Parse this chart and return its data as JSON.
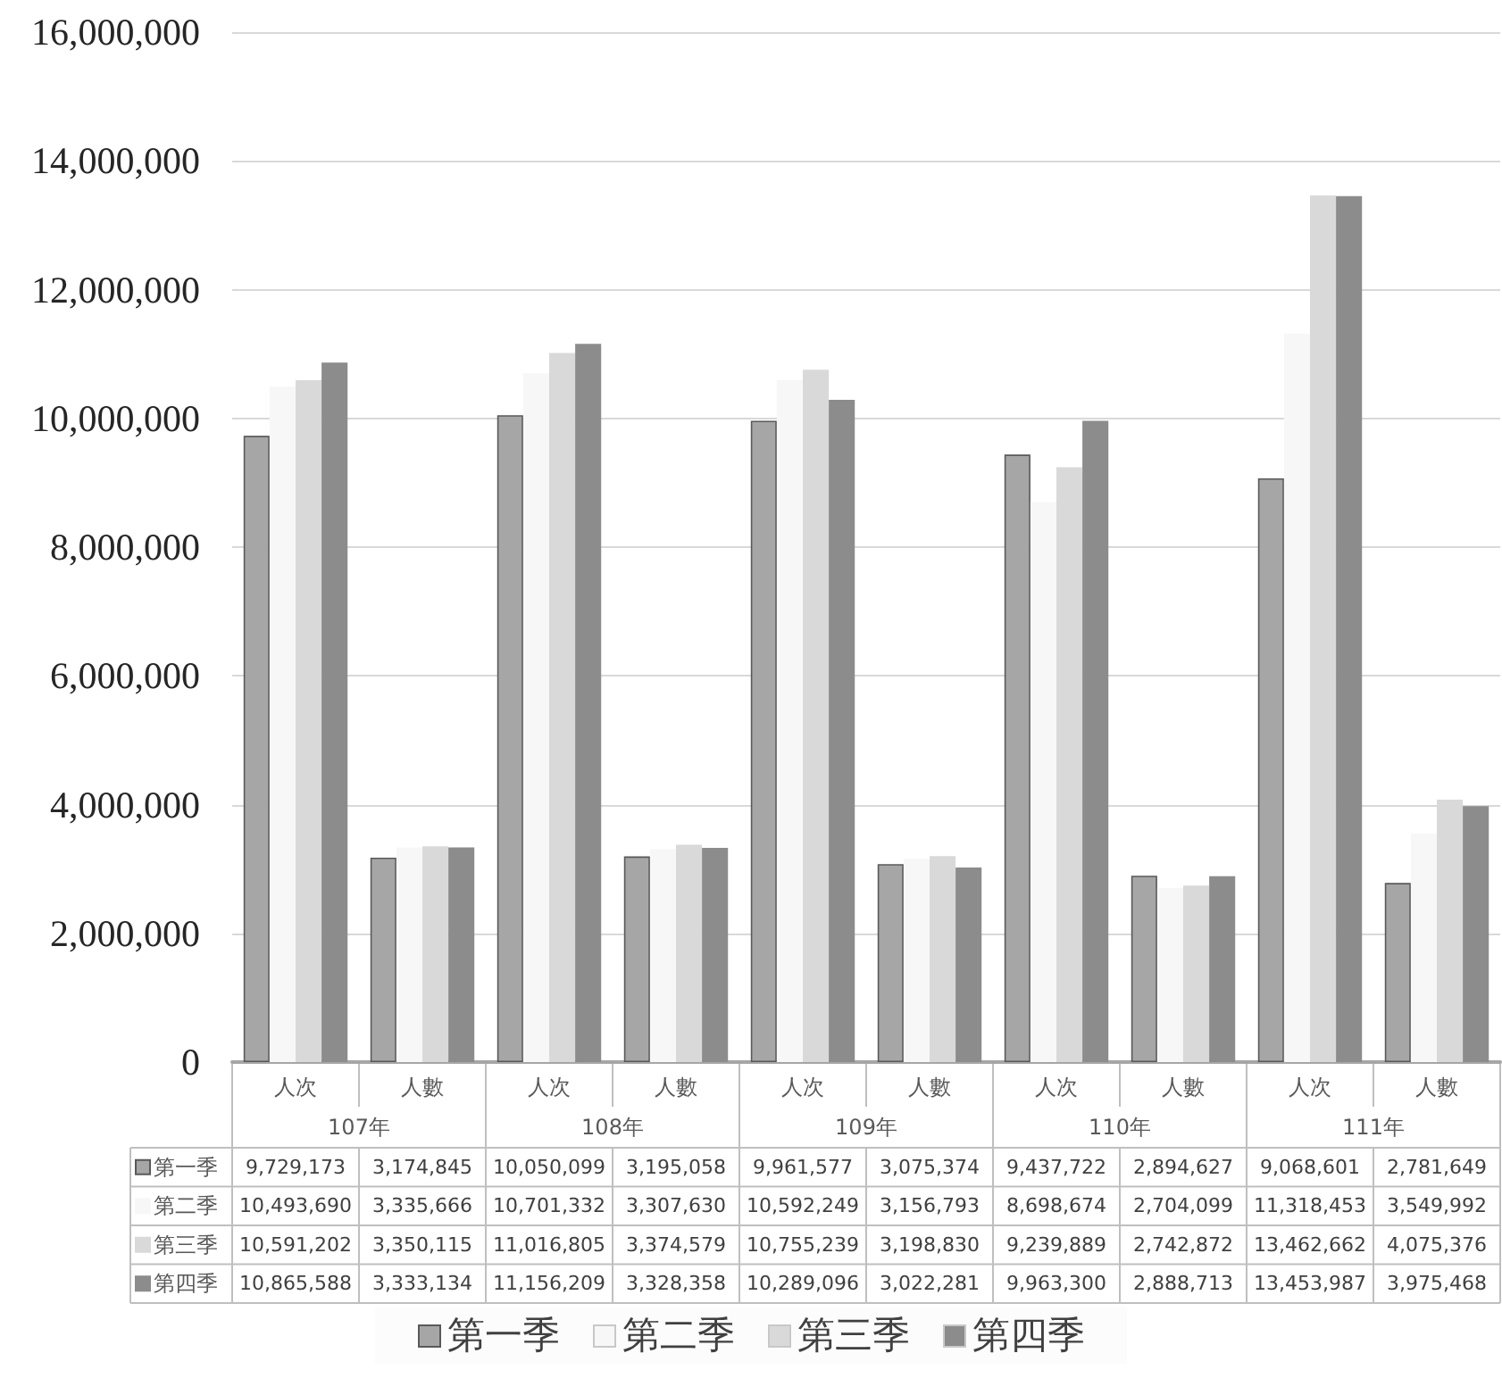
{
  "chart_data": {
    "type": "bar",
    "categories": [
      "人次",
      "人數",
      "人次",
      "人數",
      "人次",
      "人數",
      "人次",
      "人數",
      "人次",
      "人數"
    ],
    "annotations": [
      "107年",
      "108年",
      "109年",
      "110年",
      "111年"
    ],
    "series": [
      {
        "name": "第一季",
        "color": "#a6a6a6",
        "values": [
          9729173,
          3174845,
          10050099,
          3195058,
          9961577,
          3075374,
          9437722,
          2894627,
          9068601,
          2781649
        ],
        "value_labels": [
          "9,729,173",
          "3,174,845",
          "10,050,099",
          "3,195,058",
          "9,961,577",
          "3,075,374",
          "9,437,722",
          "2,894,627",
          "9,068,601",
          "2,781,649"
        ]
      },
      {
        "name": "第二季",
        "color": "#f7f7f7",
        "values": [
          10493690,
          3335666,
          10701332,
          3307630,
          10592249,
          3156793,
          8698674,
          2704099,
          11318453,
          3549992
        ],
        "value_labels": [
          "10,493,690",
          "3,335,666",
          "10,701,332",
          "3,307,630",
          "10,592,249",
          "3,156,793",
          "8,698,674",
          "2,704,099",
          "11,318,453",
          "3,549,992"
        ]
      },
      {
        "name": "第三季",
        "color": "#d9d9d9",
        "values": [
          10591202,
          3350115,
          11016805,
          3374579,
          10755239,
          3198830,
          9239889,
          2742872,
          13462662,
          4075376
        ],
        "value_labels": [
          "10,591,202",
          "3,350,115",
          "11,016,805",
          "3,374,579",
          "10,755,239",
          "3,198,830",
          "9,239,889",
          "2,742,872",
          "13,462,662",
          "4,075,376"
        ]
      },
      {
        "name": "第四季",
        "color": "#8c8c8c",
        "values": [
          10865588,
          3333134,
          11156209,
          3328358,
          10289096,
          3022281,
          9963300,
          2888713,
          13453987,
          3975468
        ],
        "value_labels": [
          "10,865,588",
          "3,333,134",
          "11,156,209",
          "3,328,358",
          "10,289,096",
          "3,022,281",
          "9,963,300",
          "2,888,713",
          "13,453,987",
          "3,975,468"
        ]
      }
    ],
    "ylim": [
      0,
      16000000
    ],
    "yticks": [
      0,
      {
        "value": 2000000,
        "label": "2,000,000"
      },
      {
        "value": 4000000,
        "label": "4,000,000"
      },
      {
        "value": 6000000,
        "label": "6,000,000"
      },
      {
        "value": 8000000,
        "label": "8,000,000"
      },
      {
        "value": 10000000,
        "label": "10,000,000"
      },
      {
        "value": 12000000,
        "label": "12,000,000"
      },
      {
        "value": 14000000,
        "label": "14,000,000"
      },
      {
        "value": 16000000,
        "label": "16,000,000"
      }
    ],
    "grid": "y",
    "legend": "bottom"
  }
}
